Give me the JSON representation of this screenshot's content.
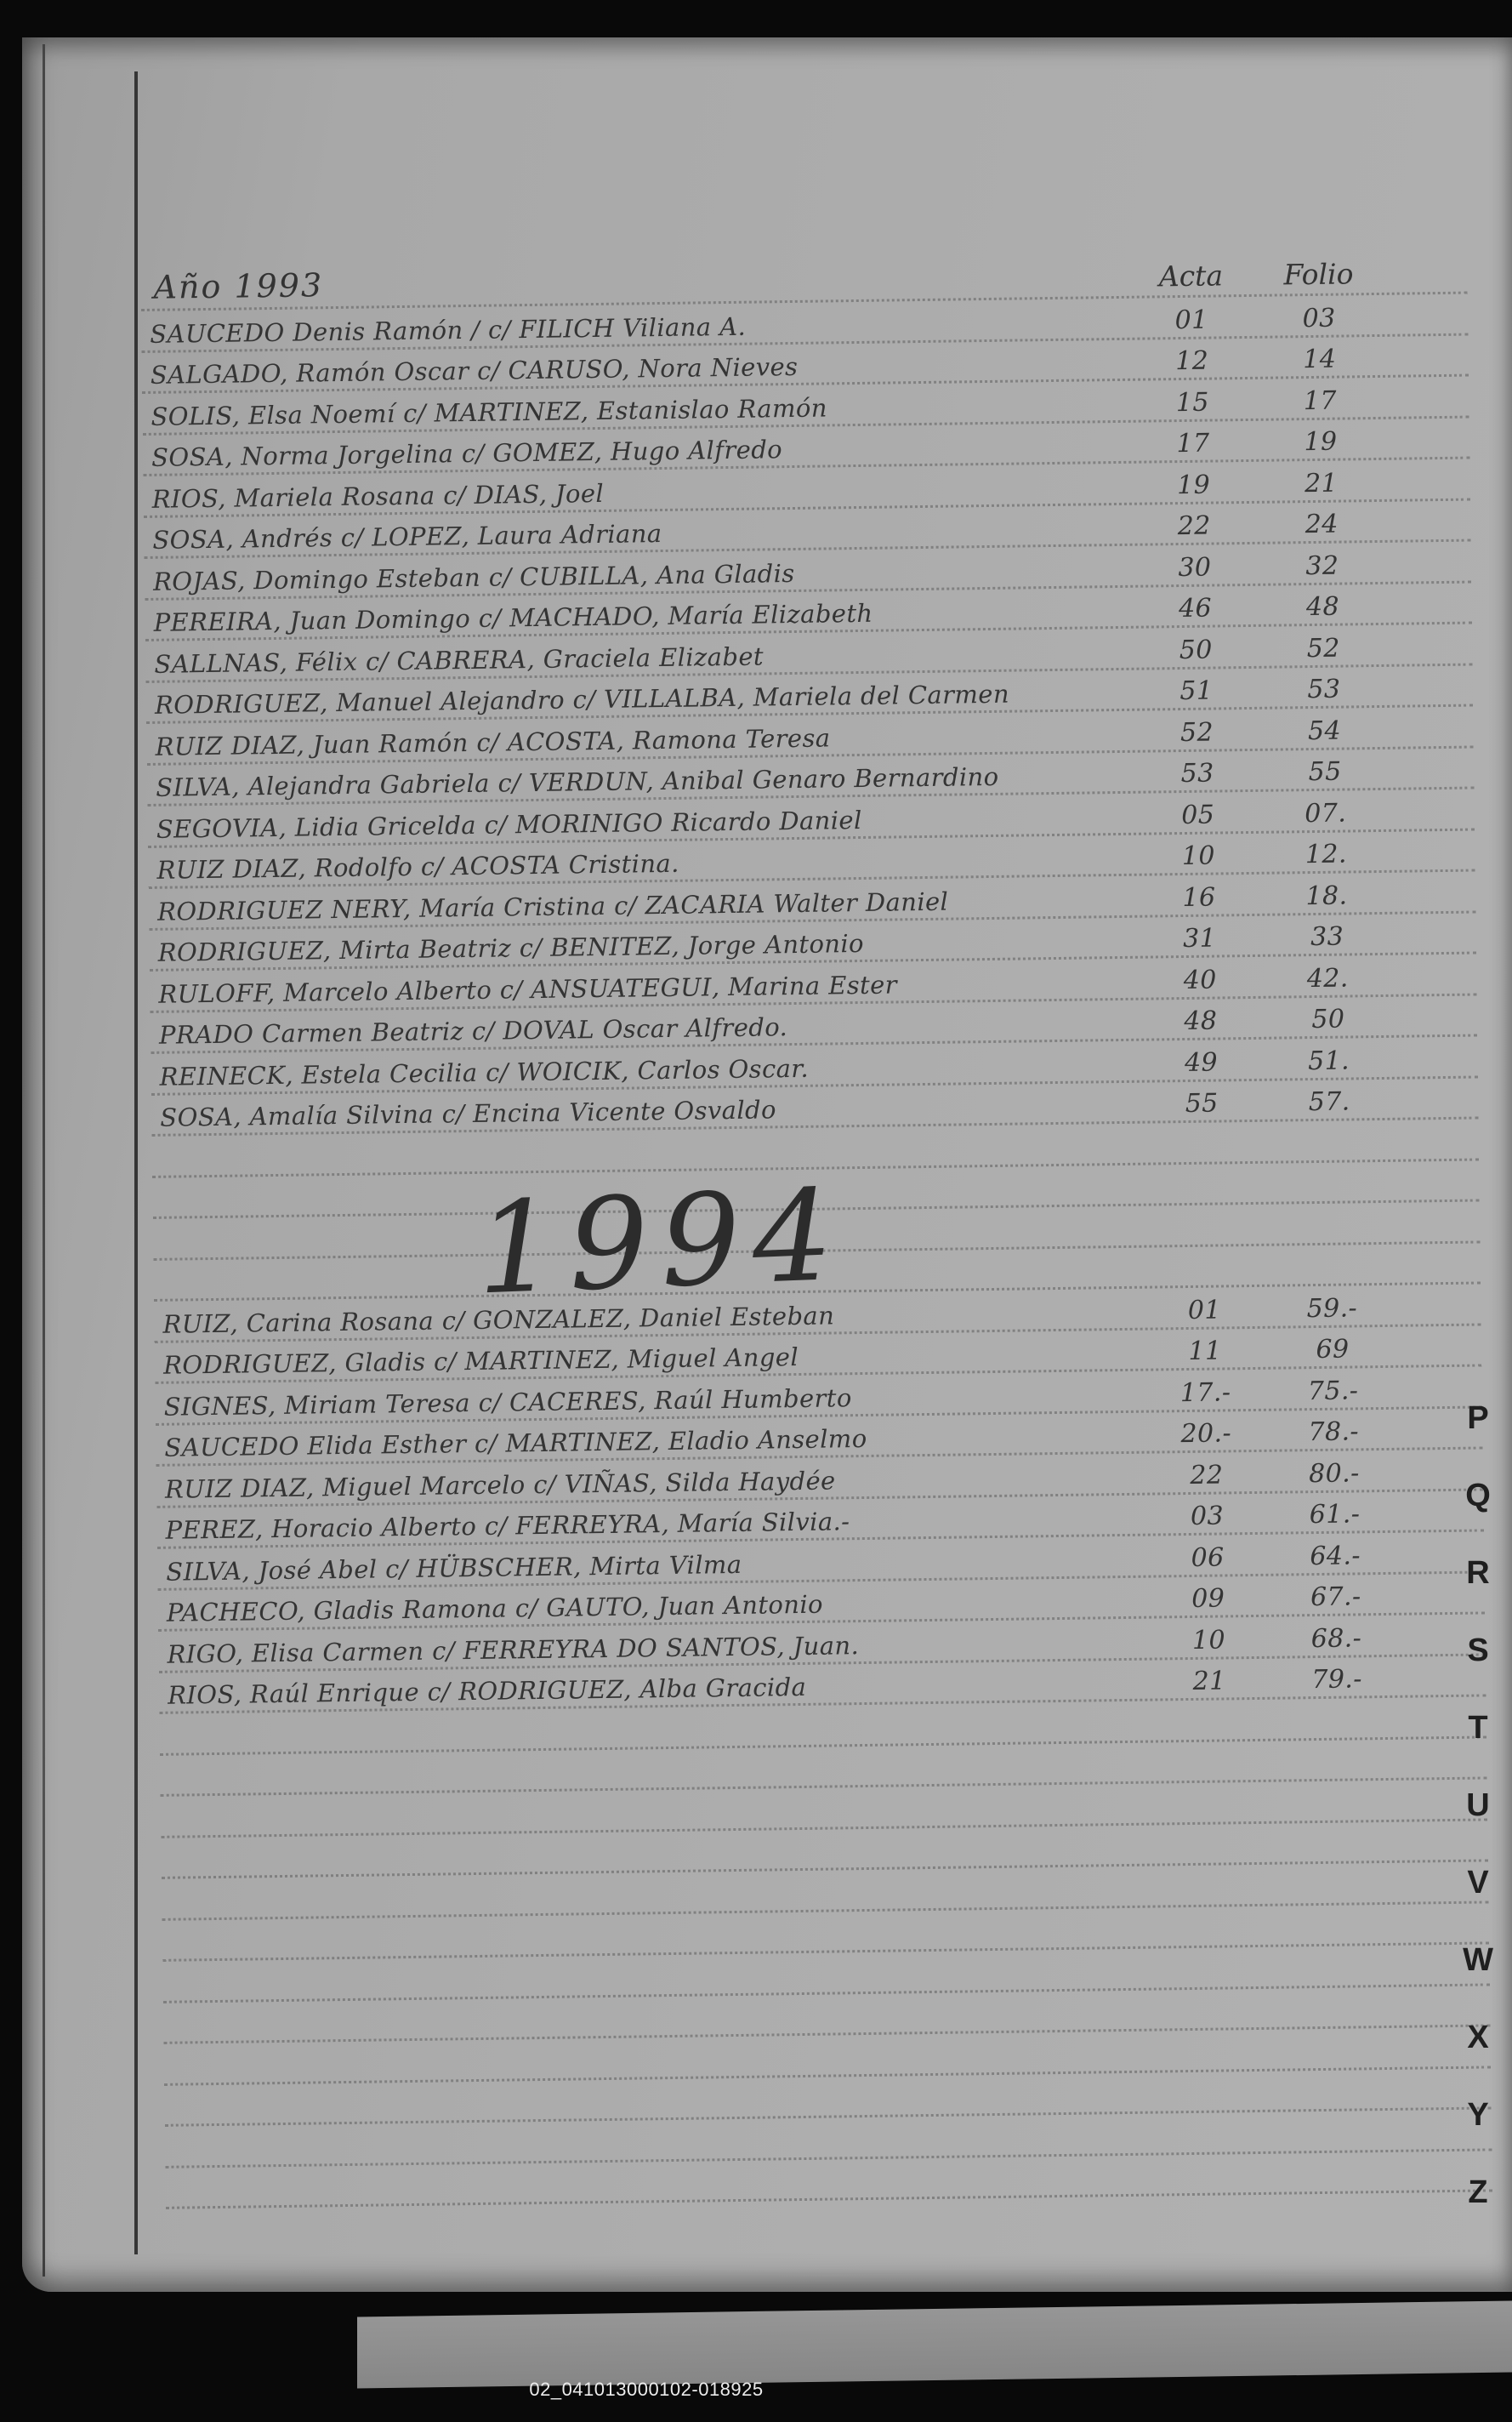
{
  "page": {
    "year_label": "Año 1993",
    "columns": {
      "acta": "Acta",
      "folio": "Folio"
    },
    "sections": [
      {
        "year": "1993",
        "entries": [
          {
            "name": "SAUCEDO Denis Ramón / c/ FILICH Viliana A.",
            "acta": "01",
            "folio": "03"
          },
          {
            "name": "SALGADO, Ramón Oscar c/ CARUSO, Nora Nieves",
            "acta": "12",
            "folio": "14"
          },
          {
            "name": "SOLIS, Elsa Noemí c/ MARTINEZ, Estanislao Ramón",
            "acta": "15",
            "folio": "17"
          },
          {
            "name": "SOSA, Norma Jorgelina c/ GOMEZ, Hugo Alfredo",
            "acta": "17",
            "folio": "19"
          },
          {
            "name": "RIOS, Mariela Rosana c/ DIAS, Joel",
            "acta": "19",
            "folio": "21"
          },
          {
            "name": "SOSA, Andrés c/ LOPEZ, Laura Adriana",
            "acta": "22",
            "folio": "24"
          },
          {
            "name": "ROJAS, Domingo Esteban c/ CUBILLA, Ana Gladis",
            "acta": "30",
            "folio": "32"
          },
          {
            "name": "PEREIRA, Juan Domingo c/ MACHADO, María Elizabeth",
            "acta": "46",
            "folio": "48"
          },
          {
            "name": "SALLNAS, Félix c/ CABRERA, Graciela Elizabet",
            "acta": "50",
            "folio": "52"
          },
          {
            "name": "RODRIGUEZ, Manuel Alejandro c/ VILLALBA, Mariela del Carmen",
            "acta": "51",
            "folio": "53"
          },
          {
            "name": "RUIZ DIAZ, Juan Ramón c/ ACOSTA, Ramona Teresa",
            "acta": "52",
            "folio": "54"
          },
          {
            "name": "SILVA, Alejandra Gabriela c/ VERDUN, Anibal Genaro Bernardino",
            "acta": "53",
            "folio": "55"
          },
          {
            "name": "SEGOVIA, Lidia Gricelda c/ MORINIGO Ricardo Daniel",
            "acta": "05",
            "folio": "07."
          },
          {
            "name": "RUIZ DIAZ, Rodolfo c/ ACOSTA Cristina.",
            "acta": "10",
            "folio": "12."
          },
          {
            "name": "RODRIGUEZ NERY, María Cristina c/ ZACARIA Walter Daniel",
            "acta": "16",
            "folio": "18."
          },
          {
            "name": "RODRIGUEZ, Mirta Beatriz c/ BENITEZ, Jorge Antonio",
            "acta": "31",
            "folio": "33"
          },
          {
            "name": "RULOFF, Marcelo Alberto c/ ANSUATEGUI, Marina Ester",
            "acta": "40",
            "folio": "42."
          },
          {
            "name": "PRADO Carmen Beatriz c/ DOVAL Oscar Alfredo.",
            "acta": "48",
            "folio": "50"
          },
          {
            "name": "REINECK, Estela Cecilia c/ WOICIK, Carlos Oscar.",
            "acta": "49",
            "folio": "51."
          },
          {
            "name": "SOSA, Amalía Silvina c/ Encina Vicente Osvaldo",
            "acta": "55",
            "folio": "57."
          }
        ]
      },
      {
        "year": "1994",
        "heading": "1994",
        "entries": [
          {
            "name": "RUIZ, Carina Rosana c/ GONZALEZ, Daniel Esteban",
            "acta": "01",
            "folio": "59.-"
          },
          {
            "name": "RODRIGUEZ, Gladis c/ MARTINEZ, Miguel Angel",
            "acta": "11",
            "folio": "69"
          },
          {
            "name": "SIGNES, Miriam Teresa c/ CACERES, Raúl Humberto",
            "acta": "17.-",
            "folio": "75.-"
          },
          {
            "name": "SAUCEDO Elida Esther c/ MARTINEZ, Eladio Anselmo",
            "acta": "20.-",
            "folio": "78.-"
          },
          {
            "name": "RUIZ DIAZ, Miguel Marcelo c/ VIÑAS, Silda Haydée",
            "acta": "22",
            "folio": "80.-"
          },
          {
            "name": "PEREZ, Horacio Alberto c/ FERREYRA, María Silvia.-",
            "acta": "03",
            "folio": "61.-"
          },
          {
            "name": "SILVA, José Abel c/ HÜBSCHER, Mirta Vilma",
            "acta": "06",
            "folio": "64.-"
          },
          {
            "name": "PACHECO, Gladis Ramona c/ GAUTO, Juan Antonio",
            "acta": "09",
            "folio": "67.-"
          },
          {
            "name": "RIGO, Elisa Carmen c/ FERREYRA DO SANTOS, Juan.",
            "acta": "10",
            "folio": "68.-"
          },
          {
            "name": "RIOS, Raúl Enrique c/ RODRIGUEZ, Alba Gracida",
            "acta": "21",
            "folio": "79.-"
          }
        ]
      }
    ],
    "side_index": [
      "P",
      "Q",
      "R",
      "S",
      "T",
      "U",
      "V",
      "W",
      "X",
      "Y",
      "Z"
    ],
    "caption": "02_041013000102-018925"
  },
  "colors": {
    "paper": "#a8a8a8",
    "ink": "#343434",
    "background": "#090909",
    "caption_text": "#ececec"
  }
}
